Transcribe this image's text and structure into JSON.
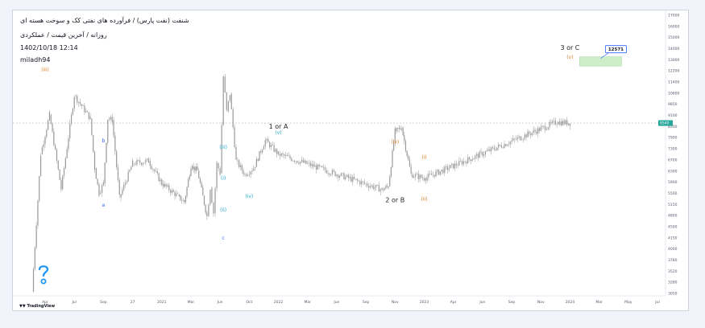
{
  "header": {
    "title": "شنفت (نفت پارس) / فرآورده های نفتی کک و سوخت هسته ای",
    "subtitle": "روزانه / آخرین قیمت / عملکردی",
    "datetime": "1402/10/18 12:14",
    "author": "miladh94"
  },
  "footer": {
    "brand": "TradingView"
  },
  "colors": {
    "candle": "#999999",
    "wave_cyan": "#1ea7d0",
    "wave_blue": "#2962ff",
    "wave_orange": "#e07a1f",
    "target_fill": "#cdeec8",
    "price_tag": "#26a69a",
    "logo": "#2196f3"
  },
  "icons": {
    "logo": "question-pin-icon"
  },
  "chart_data": {
    "type": "candlestick",
    "title": "شنفت (نفت پارس) / فرآورده های نفتی کک و سوخت هسته ای",
    "subtitle": "روزانه / آخرین قیمت / عملکردی",
    "x_tick_labels": [
      "Apr",
      "Jul",
      "Sep",
      "27",
      "2021",
      "Mar",
      "Jun",
      "Oct",
      "2022",
      "Mar",
      "Jun",
      "Sep",
      "Nov",
      "2023",
      "Apr",
      "Jun",
      "Sep",
      "Nov",
      "2024",
      "Mar",
      "May",
      "Jul"
    ],
    "y_tick_labels": [
      "17000",
      "16000",
      "15000",
      "14000",
      "13000",
      "12200",
      "11400",
      "10600",
      "9850",
      "9100",
      "8500",
      "7900",
      "7300",
      "6700",
      "6300",
      "5900",
      "5500",
      "5150",
      "4800",
      "4500",
      "4150",
      "4000",
      "3780",
      "3520",
      "3280",
      "3050"
    ],
    "price_scale": "log",
    "y_range": [
      2900,
      17200
    ],
    "last_price": 8540,
    "last_price_label": "8540",
    "target_label": "12571",
    "target_zone": [
      12300,
      13050
    ],
    "grid": false,
    "path": [
      [
        "Apr",
        2900
      ],
      [
        "Jul",
        5600
      ],
      [
        "Jul",
        10200
      ],
      [
        "Sep",
        8800
      ],
      [
        "Sep",
        6400
      ],
      [
        "Sep",
        5450
      ],
      [
        "27",
        5300
      ],
      [
        "27",
        6600
      ],
      [
        "2021",
        6700
      ],
      [
        "2021",
        5800
      ],
      [
        "Mar",
        5350
      ],
      [
        "Mar",
        5150
      ],
      [
        "Jun",
        4700
      ],
      [
        "Jun",
        5650
      ],
      [
        "Jun",
        4800
      ],
      [
        "Oct",
        6700
      ],
      [
        "Oct",
        6150
      ],
      [
        "Oct",
        6400
      ],
      [
        "2022",
        7650
      ],
      [
        "2022",
        7000
      ],
      [
        "Mar",
        6500
      ],
      [
        "Mar",
        6300
      ],
      [
        "Jun",
        6600
      ],
      [
        "Jun",
        6200
      ],
      [
        "Sep",
        5800
      ],
      [
        "Nov",
        5580
      ],
      [
        "Nov",
        5700
      ],
      [
        "2023",
        6150
      ],
      [
        "2023",
        6000
      ],
      [
        "Apr",
        7000
      ],
      [
        "Apr",
        9000
      ],
      [
        "Jun",
        11500
      ],
      [
        "Jun",
        9200
      ],
      [
        "Jun",
        10300
      ],
      [
        "Sep",
        8800
      ],
      [
        "Sep",
        8700
      ],
      [
        "Nov",
        8100
      ],
      [
        "Nov",
        8300
      ],
      [
        "2024",
        8600
      ],
      [
        "2024",
        8540
      ]
    ],
    "wave_labels": [
      {
        "text": "a",
        "x": "Sep",
        "y": 5000,
        "color": "#2962ff"
      },
      {
        "text": "b",
        "x": "Sep",
        "y": 7550,
        "color": "#2962ff"
      },
      {
        "text": "c",
        "x": "Jun",
        "y": 4050,
        "color": "#2962ff"
      },
      {
        "text": "(i)",
        "x": "Jun",
        "y": 5950,
        "color": "#1ea7d0"
      },
      {
        "text": "(ii)",
        "x": "Jun",
        "y": 4850,
        "color": "#1ea7d0"
      },
      {
        "text": "(iii)",
        "x": "Jun",
        "y": 7250,
        "color": "#1ea7d0"
      },
      {
        "text": "(iv)",
        "x": "Oct",
        "y": 5300,
        "color": "#1ea7d0"
      },
      {
        "text": "(v)",
        "x": "2022",
        "y": 7950,
        "color": "#1ea7d0"
      },
      {
        "text": "1 or A",
        "x": "2022",
        "y": 8250,
        "color": "#222222"
      },
      {
        "text": "2 or B",
        "x": "Nov",
        "y": 5150,
        "color": "#222222"
      },
      {
        "text": "(i)",
        "x": "2023",
        "y": 6800,
        "color": "#e07a1f"
      },
      {
        "text": "(ii)",
        "x": "2023",
        "y": 5200,
        "color": "#e07a1f"
      },
      {
        "text": "(iii)",
        "x": "Apr",
        "y": 11900,
        "color": "#e07a1f"
      },
      {
        "text": "(iv)",
        "x": "Nov",
        "y": 7500,
        "color": "#e07a1f"
      },
      {
        "text": "(v)",
        "x": "2024",
        "y": 12900,
        "color": "#e07a1f"
      },
      {
        "text": "3 or C",
        "x": "2024",
        "y": 13650,
        "color": "#222222"
      }
    ]
  }
}
